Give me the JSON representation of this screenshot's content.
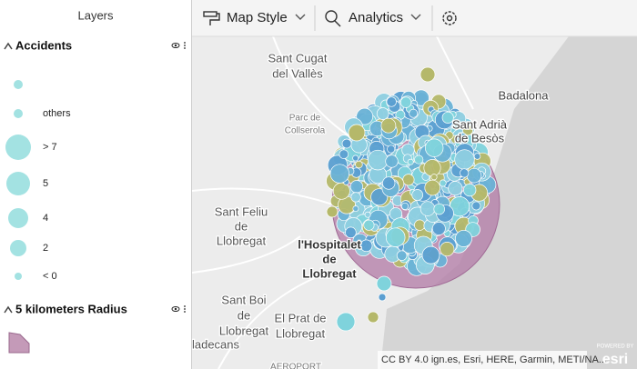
{
  "sidebar": {
    "title": "Layers",
    "layers": [
      {
        "name": "Accidents",
        "legend": [
          "others",
          "> 7",
          "5",
          "4",
          "2",
          "< 0"
        ]
      },
      {
        "name": "5 kilometers Radius"
      }
    ]
  },
  "toolbar": {
    "buttons": [
      "Map Style",
      "Analytics"
    ]
  },
  "map": {
    "labels": [
      {
        "lines": [
          "Sant Cugat",
          "del Vallès"
        ]
      },
      {
        "lines": [
          "Badalona"
        ]
      },
      {
        "lines": [
          "Parc de",
          "Collserola"
        ]
      },
      {
        "lines": [
          "Sant Adrià",
          "de Besòs"
        ]
      },
      {
        "lines": [
          "Sant Feliu",
          "de",
          "Llobregat"
        ]
      },
      {
        "lines": [
          "l'Hospitalet",
          "de",
          "Llobregat"
        ]
      },
      {
        "lines": [
          "Sant Boi",
          "de",
          "Llobregat"
        ]
      },
      {
        "lines": [
          "El Prat de",
          "Llobregat"
        ]
      },
      {
        "lines": [
          "ladecans"
        ]
      },
      {
        "lines": [
          "AEROPORT"
        ]
      }
    ],
    "attribution": "CC BY 4.0 ign.es, Esri, HERE, Garmin, METI/NA...",
    "logo": {
      "top": "POWERED BY",
      "brand": "esri"
    }
  }
}
